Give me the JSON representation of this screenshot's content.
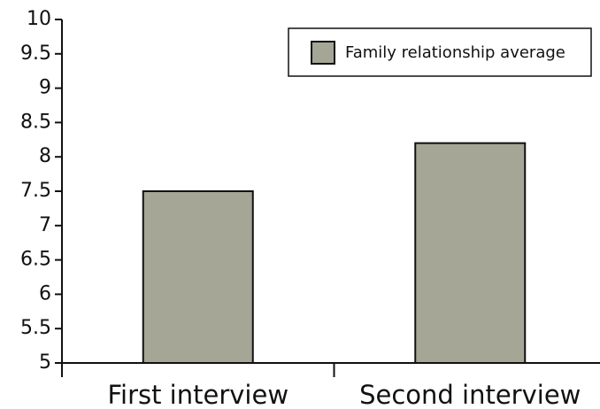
{
  "chart_data": {
    "type": "bar",
    "categories": [
      "First interview",
      "Second interview"
    ],
    "series": [
      {
        "name": "Family relationship average",
        "color": "#a5a696",
        "values": [
          7.5,
          8.2
        ]
      }
    ],
    "ylim": [
      5,
      10
    ],
    "yticks": [
      5,
      5.5,
      6,
      6.5,
      7,
      7.5,
      8,
      8.5,
      9,
      9.5,
      10
    ],
    "legend": "upper right"
  }
}
